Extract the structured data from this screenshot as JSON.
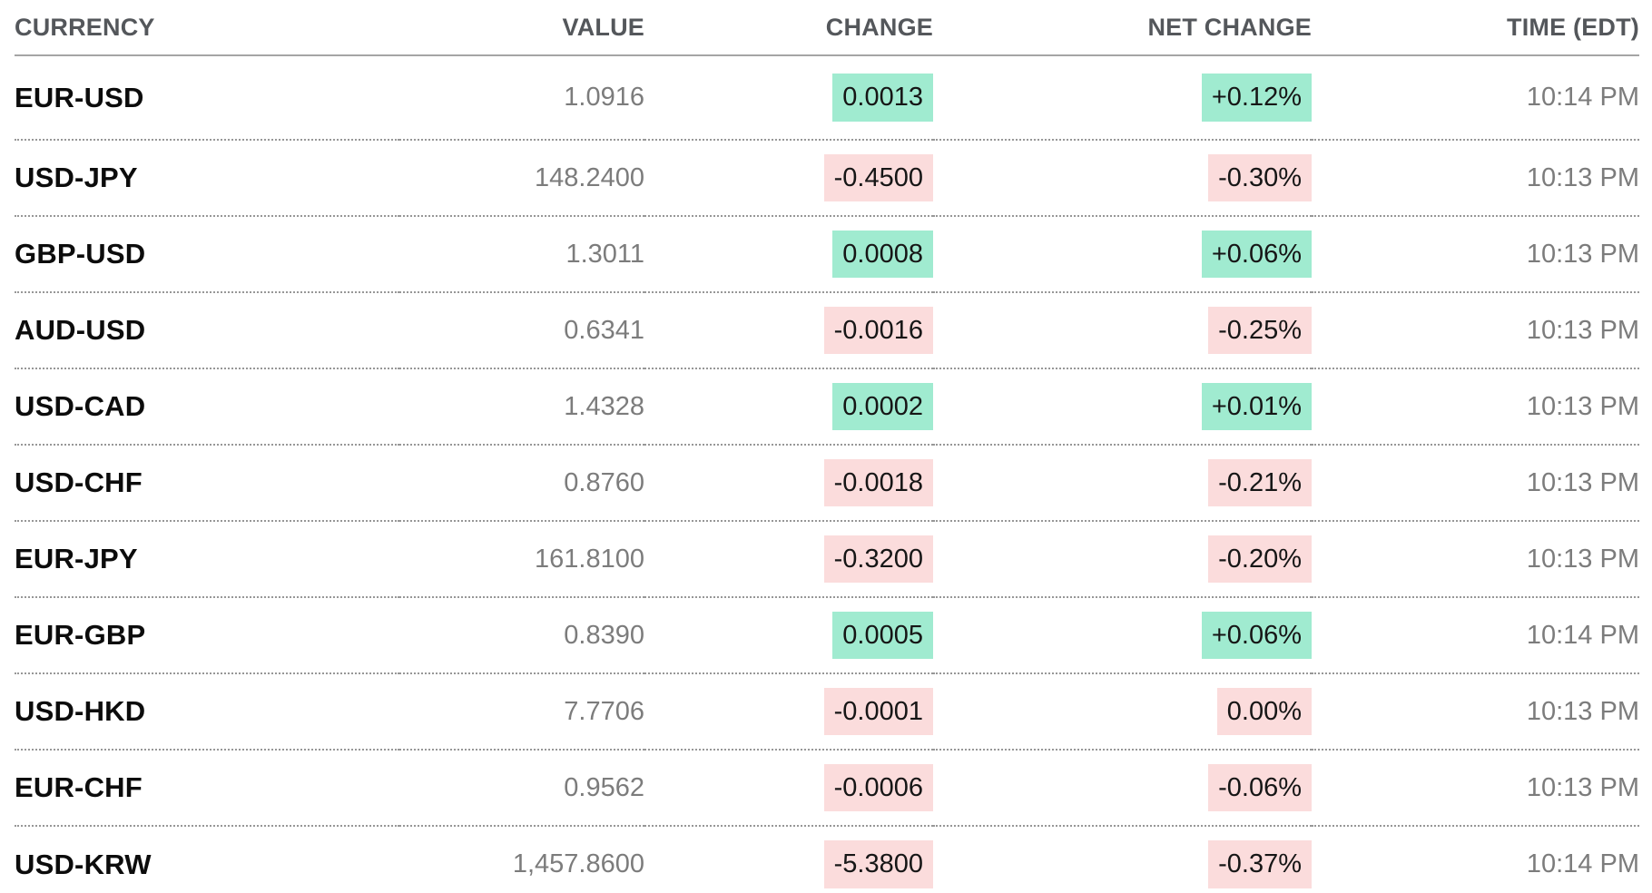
{
  "chart_data": {
    "type": "table",
    "columns": [
      "CURRENCY",
      "VALUE",
      "CHANGE",
      "NET CHANGE",
      "TIME (EDT)"
    ],
    "rows": [
      {
        "currency": "EUR-USD",
        "value": "1.0916",
        "change": "0.0013",
        "net_change": "+0.12%",
        "direction": "positive",
        "time": "10:14 PM"
      },
      {
        "currency": "USD-JPY",
        "value": "148.2400",
        "change": "-0.4500",
        "net_change": "-0.30%",
        "direction": "negative",
        "time": "10:13 PM"
      },
      {
        "currency": "GBP-USD",
        "value": "1.3011",
        "change": "0.0008",
        "net_change": "+0.06%",
        "direction": "positive",
        "time": "10:13 PM"
      },
      {
        "currency": "AUD-USD",
        "value": "0.6341",
        "change": "-0.0016",
        "net_change": "-0.25%",
        "direction": "negative",
        "time": "10:13 PM"
      },
      {
        "currency": "USD-CAD",
        "value": "1.4328",
        "change": "0.0002",
        "net_change": "+0.01%",
        "direction": "positive",
        "time": "10:13 PM"
      },
      {
        "currency": "USD-CHF",
        "value": "0.8760",
        "change": "-0.0018",
        "net_change": "-0.21%",
        "direction": "negative",
        "time": "10:13 PM"
      },
      {
        "currency": "EUR-JPY",
        "value": "161.8100",
        "change": "-0.3200",
        "net_change": "-0.20%",
        "direction": "negative",
        "time": "10:13 PM"
      },
      {
        "currency": "EUR-GBP",
        "value": "0.8390",
        "change": "0.0005",
        "net_change": "+0.06%",
        "direction": "positive",
        "time": "10:14 PM"
      },
      {
        "currency": "USD-HKD",
        "value": "7.7706",
        "change": "-0.0001",
        "net_change": "0.00%",
        "direction": "negative",
        "time": "10:13 PM"
      },
      {
        "currency": "EUR-CHF",
        "value": "0.9562",
        "change": "-0.0006",
        "net_change": "-0.06%",
        "direction": "negative",
        "time": "10:13 PM"
      },
      {
        "currency": "USD-KRW",
        "value": "1,457.8600",
        "change": "-5.3800",
        "net_change": "-0.37%",
        "direction": "negative",
        "time": "10:14 PM"
      }
    ],
    "colors": {
      "positive_bg": "#A0EBD0",
      "negative_bg": "#FBDCDC"
    }
  }
}
